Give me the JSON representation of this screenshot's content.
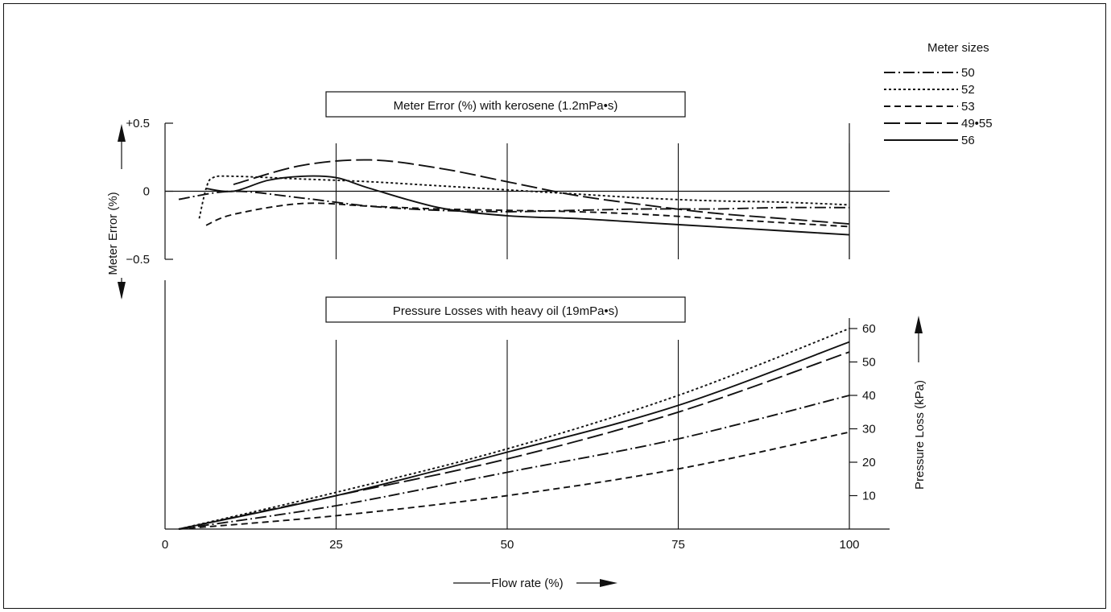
{
  "chart_data": [
    {
      "type": "line",
      "title": "Meter Error (%) with kerosene (1.2mPa•s)",
      "ylabel": "Meter Error (%)",
      "xlim": [
        0,
        100
      ],
      "ylim": [
        -0.5,
        0.5
      ],
      "yticks": [
        "+0.5",
        "0",
        "−0.5"
      ],
      "series": [
        {
          "name": "50",
          "x": [
            2,
            10,
            20,
            30,
            40,
            50,
            60,
            70,
            80,
            90,
            100
          ],
          "values": [
            -0.06,
            0.0,
            -0.05,
            -0.11,
            -0.14,
            -0.15,
            -0.14,
            -0.13,
            -0.13,
            -0.12,
            -0.12
          ]
        },
        {
          "name": "52",
          "x": [
            5,
            6,
            7,
            10,
            20,
            30,
            40,
            50,
            60,
            70,
            80,
            90,
            100
          ],
          "values": [
            -0.2,
            0.02,
            0.1,
            0.11,
            0.09,
            0.07,
            0.04,
            0.01,
            -0.02,
            -0.05,
            -0.07,
            -0.08,
            -0.1
          ]
        },
        {
          "name": "53",
          "x": [
            6,
            10,
            20,
            30,
            40,
            50,
            60,
            70,
            80,
            90,
            100
          ],
          "values": [
            -0.25,
            -0.17,
            -0.09,
            -0.11,
            -0.13,
            -0.14,
            -0.15,
            -0.17,
            -0.2,
            -0.23,
            -0.26
          ]
        },
        {
          "name": "49•55",
          "x": [
            10,
            20,
            30,
            40,
            50,
            60,
            70,
            80,
            90,
            100
          ],
          "values": [
            0.05,
            0.19,
            0.23,
            0.17,
            0.07,
            -0.03,
            -0.1,
            -0.16,
            -0.2,
            -0.24
          ]
        },
        {
          "name": "56",
          "x": [
            6,
            10,
            15,
            20,
            25,
            30,
            40,
            50,
            60,
            70,
            80,
            90,
            100
          ],
          "values": [
            0.02,
            0.0,
            0.08,
            0.11,
            0.1,
            0.02,
            -0.12,
            -0.18,
            -0.2,
            -0.23,
            -0.26,
            -0.29,
            -0.32
          ]
        }
      ]
    },
    {
      "type": "line",
      "title": "Pressure Losses with heavy oil (19mPa•s)",
      "ylabel": "Pressure Loss (kPa)",
      "xlabel": "Flow rate (%)",
      "xlim": [
        0,
        100
      ],
      "ylim": [
        0,
        60
      ],
      "xticks": [
        "0",
        "25",
        "50",
        "75",
        "100"
      ],
      "yticks": [
        "10",
        "20",
        "30",
        "40",
        "50",
        "60"
      ],
      "series": [
        {
          "name": "50",
          "x": [
            2,
            25,
            50,
            75,
            100
          ],
          "values": [
            0,
            7,
            17,
            27,
            40
          ]
        },
        {
          "name": "52",
          "x": [
            2,
            25,
            50,
            75,
            100
          ],
          "values": [
            0,
            11,
            24,
            40,
            60
          ]
        },
        {
          "name": "53",
          "x": [
            2,
            25,
            50,
            75,
            100
          ],
          "values": [
            0,
            4,
            10,
            18,
            29
          ]
        },
        {
          "name": "49•55",
          "x": [
            2,
            25,
            50,
            75,
            100
          ],
          "values": [
            0,
            10,
            21,
            35,
            53
          ]
        },
        {
          "name": "56",
          "x": [
            2,
            25,
            50,
            75,
            100
          ],
          "values": [
            0,
            10,
            23,
            37,
            56
          ]
        }
      ]
    }
  ],
  "legend": {
    "title": "Meter sizes",
    "items": [
      {
        "label": "50",
        "dash": "dash-dot"
      },
      {
        "label": "52",
        "dash": "dotted"
      },
      {
        "label": "53",
        "dash": "dashed"
      },
      {
        "label": "49•55",
        "dash": "long-dash"
      },
      {
        "label": "56",
        "dash": "solid"
      }
    ]
  },
  "colors": {
    "ink": "#111111",
    "background": "#ffffff"
  }
}
